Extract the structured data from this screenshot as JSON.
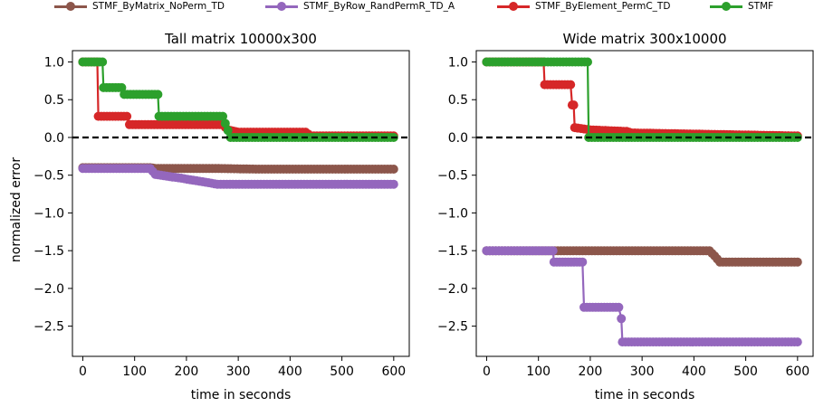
{
  "legend": [
    {
      "name": "STMF_ByMatrix_NoPerm_TD",
      "color": "#8c564b"
    },
    {
      "name": "STMF_ByRow_RandPermR_TD_A",
      "color": "#9467bd"
    },
    {
      "name": "STMF_ByElement_PermC_TD",
      "color": "#d62728"
    },
    {
      "name": "STMF",
      "color": "#2ca02c"
    }
  ],
  "chart_data": [
    {
      "type": "line",
      "title": "Tall matrix 10000x300",
      "xlabel": "time in seconds",
      "ylabel": "normalized error",
      "xlim": [
        -20,
        630
      ],
      "ylim": [
        -2.9,
        1.15
      ],
      "xticks": [
        0,
        100,
        200,
        300,
        400,
        500,
        600
      ],
      "yticks": [
        1.0,
        0.5,
        0.0,
        -0.5,
        -1.0,
        -1.5,
        -2.0,
        -2.5
      ],
      "yticklabels": [
        "1.0",
        "0.5",
        "0.0",
        "−0.5",
        "−1.0",
        "−1.5",
        "−2.0",
        "−2.5"
      ],
      "reference_line": {
        "y": 0.0,
        "style": "dashed",
        "color": "#000000"
      },
      "series": [
        {
          "name": "STMF_ByMatrix_NoPerm_TD",
          "color": "#8c564b",
          "x": [
            0,
            130,
            140,
            190,
            250,
            340,
            600
          ],
          "y": [
            -0.4,
            -0.4,
            -0.41,
            -0.41,
            -0.41,
            -0.42,
            -0.42
          ]
        },
        {
          "name": "STMF_ByRow_RandPermR_TD_A",
          "color": "#9467bd",
          "x": [
            0,
            130,
            140,
            190,
            260,
            600
          ],
          "y": [
            -0.41,
            -0.41,
            -0.49,
            -0.54,
            -0.62,
            -0.62
          ]
        },
        {
          "name": "STMF_ByElement_PermC_TD",
          "color": "#d62728",
          "x": [
            0,
            28,
            30,
            85,
            90,
            270,
            280,
            300,
            430,
            440,
            600
          ],
          "y": [
            1.0,
            1.0,
            0.28,
            0.28,
            0.17,
            0.17,
            0.1,
            0.07,
            0.07,
            0.02,
            0.02
          ]
        },
        {
          "name": "STMF",
          "color": "#2ca02c",
          "x": [
            0,
            38,
            40,
            75,
            80,
            145,
            147,
            270,
            285,
            600
          ],
          "y": [
            1.0,
            1.0,
            0.66,
            0.66,
            0.57,
            0.57,
            0.28,
            0.28,
            0.0,
            0.0
          ]
        }
      ]
    },
    {
      "type": "line",
      "title": "Wide matrix 300x10000",
      "xlabel": "time in seconds",
      "ylabel": "",
      "xlim": [
        -20,
        630
      ],
      "ylim": [
        -2.9,
        1.15
      ],
      "xticks": [
        0,
        100,
        200,
        300,
        400,
        500,
        600
      ],
      "yticks": [
        1.0,
        0.5,
        0.0,
        -0.5,
        -1.0,
        -1.5,
        -2.0,
        -2.5
      ],
      "yticklabels": [
        "1.0",
        "0.5",
        "0.0",
        "−0.5",
        "−1.0",
        "−1.5",
        "−2.0",
        "−2.5"
      ],
      "reference_line": {
        "y": 0.0,
        "style": "dashed",
        "color": "#000000"
      },
      "series": [
        {
          "name": "STMF_ByMatrix_NoPerm_TD",
          "color": "#8c564b",
          "x": [
            0,
            430,
            440,
            450,
            600
          ],
          "y": [
            -1.5,
            -1.5,
            -1.57,
            -1.65,
            -1.65
          ]
        },
        {
          "name": "STMF_ByRow_RandPermR_TD_A",
          "color": "#9467bd",
          "x": [
            0,
            128,
            130,
            185,
            188,
            255,
            260,
            262,
            600
          ],
          "y": [
            -1.5,
            -1.5,
            -1.65,
            -1.65,
            -2.25,
            -2.25,
            -2.4,
            -2.71,
            -2.71
          ]
        },
        {
          "name": "STMF_ByElement_PermC_TD",
          "color": "#d62728",
          "x": [
            0,
            110,
            112,
            162,
            165,
            168,
            170,
            200,
            270,
            280,
            600
          ],
          "y": [
            1.0,
            1.0,
            0.7,
            0.7,
            0.43,
            0.43,
            0.13,
            0.1,
            0.08,
            0.06,
            0.02
          ]
        },
        {
          "name": "STMF",
          "color": "#2ca02c",
          "x": [
            0,
            195,
            197,
            600
          ],
          "y": [
            1.0,
            1.0,
            0.0,
            0.0
          ]
        }
      ]
    }
  ]
}
